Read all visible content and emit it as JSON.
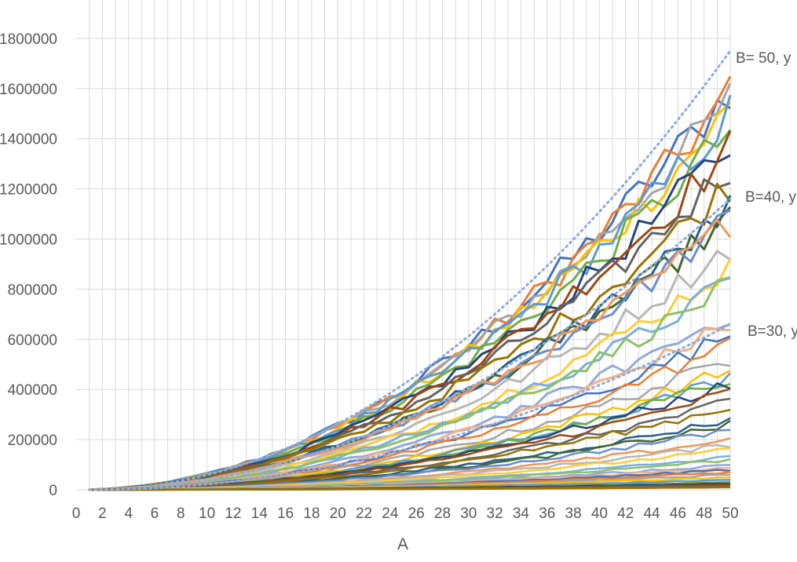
{
  "chart_data": {
    "type": "line",
    "title": "",
    "xlabel": "A",
    "ylabel": "",
    "xlim": [
      0,
      50
    ],
    "ylim": [
      0,
      1800000
    ],
    "x_ticks": [
      "0",
      "2",
      "4",
      "6",
      "8",
      "10",
      "12",
      "14",
      "16",
      "18",
      "20",
      "22",
      "24",
      "26",
      "28",
      "30",
      "32",
      "34",
      "36",
      "38",
      "40",
      "42",
      "44",
      "46",
      "48",
      "50"
    ],
    "y_ticks": [
      "0",
      "200000",
      "400000",
      "600000",
      "800000",
      "1000000",
      "1200000",
      "1400000",
      "1600000",
      "1800000"
    ],
    "y_tick_display": [
      "0",
      "200000",
      "400000",
      "600000",
      "800000",
      "1000000",
      "1200000",
      "1400000",
      "1600000",
      "1800000"
    ],
    "grid": true,
    "legend": "none",
    "annotations": [
      "B= 50, y",
      "B=40, y",
      "B=30, y"
    ],
    "trendlines": [
      {
        "label": "B= 50",
        "x": [
          1,
          50
        ],
        "y": [
          0,
          1750000
        ],
        "style": "dotted"
      },
      {
        "label": "B=40",
        "x": [
          1,
          50
        ],
        "y": [
          0,
          1160000
        ],
        "style": "dotted"
      },
      {
        "label": "B=30",
        "x": [
          1,
          50
        ],
        "y": [
          0,
          660000
        ],
        "style": "dotted"
      }
    ],
    "series_endpoints_at_x50": [
      1600000,
      1580000,
      1560000,
      1520000,
      1500000,
      1440000,
      1380000,
      1360000,
      1290000,
      1220000,
      1120000,
      1090000,
      1080000,
      1070000,
      970000,
      890000,
      830000,
      820000,
      700000,
      660000,
      620000,
      580000,
      520000,
      480000,
      450000,
      440000,
      420000,
      390000,
      350000,
      330000,
      280000,
      260000,
      240000,
      200000,
      180000,
      160000,
      130000,
      120000,
      100000,
      90000,
      80000,
      70000,
      60000,
      50000,
      40000,
      30000,
      25000,
      20000,
      15000,
      10000
    ],
    "colors": [
      "#4472c4",
      "#ed7d31",
      "#a5a5a5",
      "#ffc000",
      "#5b9bd5",
      "#70ad47",
      "#264478",
      "#9e480e",
      "#636363",
      "#997300",
      "#255e91",
      "#43682b",
      "#698ed0",
      "#f1975a",
      "#b7b7b7",
      "#ffcd33",
      "#7cafdd",
      "#8cc168",
      "#8faadc",
      "#f4b183"
    ]
  }
}
